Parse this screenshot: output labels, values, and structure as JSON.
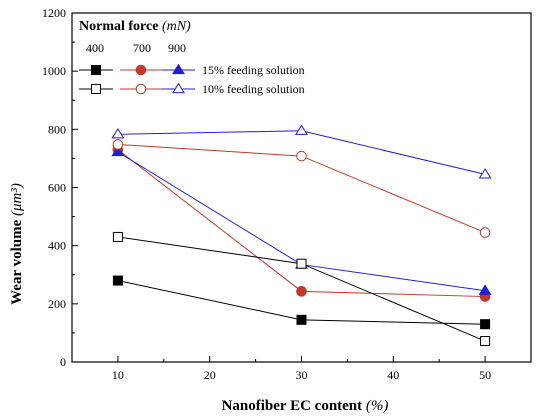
{
  "chart_data": {
    "type": "line",
    "x": [
      10,
      30,
      50
    ],
    "xlabel": "Nanofiber EC content",
    "xlabel_unit": "(%)",
    "ylabel": "Wear volume",
    "ylabel_unit": "(μm³)",
    "xlim": [
      5,
      55
    ],
    "ylim": [
      0,
      1200
    ],
    "xticks": [
      10,
      20,
      30,
      40,
      50
    ],
    "yticks": [
      0,
      200,
      400,
      600,
      800,
      1000,
      1200
    ],
    "grid": false,
    "legend_position": "top-left",
    "legend": {
      "title": "Normal force",
      "title_unit": "(mN)",
      "force_labels": [
        "400",
        "700",
        "900"
      ],
      "row_labels": [
        "15% feeding solution",
        "10% feeding solution"
      ]
    },
    "series": [
      {
        "force": "400",
        "feeding": "15% feeding solution",
        "marker": "square",
        "filled": true,
        "color": "#000000",
        "values": [
          280,
          145,
          130
        ]
      },
      {
        "force": "700",
        "feeding": "15% feeding solution",
        "marker": "circle",
        "filled": true,
        "color": "#c0392b",
        "values": [
          730,
          243,
          225
        ]
      },
      {
        "force": "900",
        "feeding": "15% feeding solution",
        "marker": "triangle",
        "filled": true,
        "color": "#1f1fd6",
        "values": [
          722,
          335,
          245
        ]
      },
      {
        "force": "400",
        "feeding": "10% feeding solution",
        "marker": "square",
        "filled": false,
        "color": "#000000",
        "values": [
          430,
          338,
          72
        ]
      },
      {
        "force": "700",
        "feeding": "10% feeding solution",
        "marker": "circle",
        "filled": false,
        "color": "#c0392b",
        "values": [
          748,
          708,
          445
        ]
      },
      {
        "force": "900",
        "feeding": "10% feeding solution",
        "marker": "triangle",
        "filled": false,
        "color": "#1f1fd6",
        "values": [
          783,
          795,
          645
        ]
      }
    ]
  }
}
